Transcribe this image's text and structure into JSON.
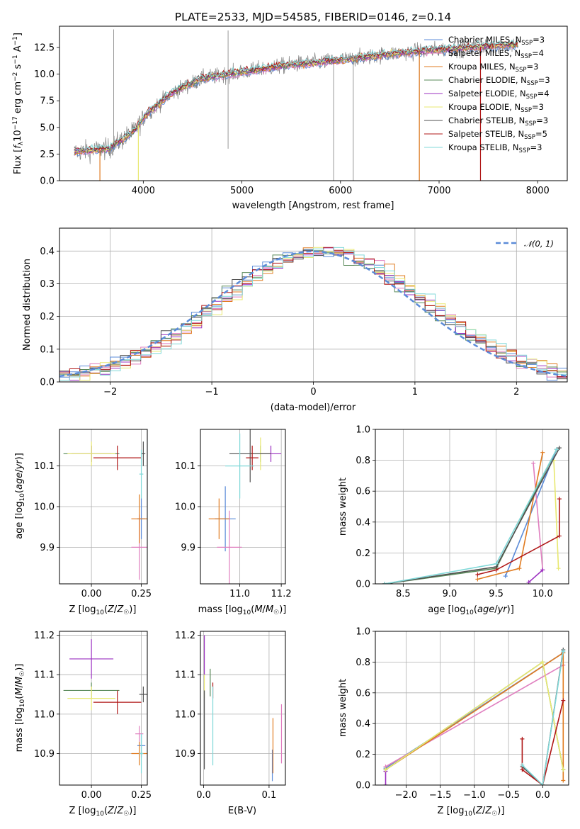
{
  "colors": {
    "chabrier_miles": "#5b8bd8",
    "salpeter_miles": "#e07fbf",
    "kroupa_miles": "#e07b20",
    "chabrier_elodie": "#5a8a5a",
    "salpeter_elodie": "#9b30c0",
    "kroupa_elodie": "#e8e870",
    "chabrier_stelib": "#505050",
    "salpeter_stelib": "#b01818",
    "kroupa_stelib": "#80d8d8",
    "gaussian": "#5b8bd8"
  },
  "chart_data": [
    {
      "id": "spectrum",
      "type": "line",
      "title": "PLATE=2533, MJD=54585, FIBERID=0146, z=0.14",
      "xlabel": "wavelength [Angstrom, rest frame]",
      "ylabel": "Flux [f_λ 10^{-17} erg cm^{-2} s^{-1} A^{-1}]",
      "xlim": [
        3150,
        8300
      ],
      "ylim": [
        0,
        14.5
      ],
      "xticks": [
        "4000",
        "5000",
        "6000",
        "7000",
        "8000"
      ],
      "yticks": [
        "0.0",
        "2.5",
        "5.0",
        "7.5",
        "10.0",
        "12.5"
      ],
      "grid": false,
      "legend_position": "top-right",
      "legend": [
        {
          "label": "Chabrier MILES, N",
          "sub": "SSP",
          "tail": "=3",
          "color": "chabrier_miles"
        },
        {
          "label": "Salpeter MILES, N",
          "sub": "SSP",
          "tail": "=4",
          "color": "salpeter_miles"
        },
        {
          "label": "Kroupa MILES, N",
          "sub": "SSP",
          "tail": "=3",
          "color": "kroupa_miles"
        },
        {
          "label": "Chabrier ELODIE, N",
          "sub": "SSP",
          "tail": "=3",
          "color": "chabrier_elodie"
        },
        {
          "label": "Salpeter ELODIE, N",
          "sub": "SSP",
          "tail": "=4",
          "color": "salpeter_elodie"
        },
        {
          "label": "Kroupa ELODIE, N",
          "sub": "SSP",
          "tail": "=3",
          "color": "kroupa_elodie"
        },
        {
          "label": "Chabrier STELIB, N",
          "sub": "SSP",
          "tail": "=3",
          "color": "chabrier_stelib"
        },
        {
          "label": "Salpeter STELIB, N",
          "sub": "SSP",
          "tail": "=5",
          "color": "salpeter_stelib"
        },
        {
          "label": "Kroupa STELIB, N",
          "sub": "SSP",
          "tail": "=3",
          "color": "kroupa_stelib"
        }
      ],
      "continuum_knots": [
        [
          3300,
          2.7
        ],
        [
          3650,
          3.0
        ],
        [
          3900,
          4.6
        ],
        [
          4050,
          6.4
        ],
        [
          4300,
          8.3
        ],
        [
          4600,
          9.6
        ],
        [
          5000,
          10.2
        ],
        [
          5500,
          10.9
        ],
        [
          6000,
          11.3
        ],
        [
          6500,
          11.9
        ],
        [
          7000,
          12.3
        ],
        [
          7500,
          12.6
        ],
        [
          7800,
          12.8
        ]
      ],
      "spikes_down": [
        [
          4860,
          3.0
        ],
        [
          5930,
          0.0
        ],
        [
          6130,
          0.0
        ],
        [
          6800,
          0.0
        ],
        [
          7420,
          0.0
        ]
      ],
      "spikes_up": [
        [
          3700,
          14.2
        ],
        [
          4860,
          14.1
        ]
      ]
    },
    {
      "id": "residuals",
      "type": "line",
      "xlabel": "(data-model)/error",
      "ylabel": "Normed distribution",
      "xlim": [
        -2.5,
        2.5
      ],
      "ylim": [
        0,
        0.47
      ],
      "xticks": [
        "−2",
        "−1",
        "0",
        "1",
        "2"
      ],
      "yticks": [
        "0.0",
        "0.1",
        "0.2",
        "0.3",
        "0.4"
      ],
      "grid": true,
      "legend_position": "top-right",
      "legend_label": "𝒩(0, 1)",
      "bin_width": 0.1
    },
    {
      "id": "age_vs_Z",
      "type": "scatter",
      "xlabel": "Z [log10(Z/Z☉)]",
      "ylabel": "age  [log10(age/yr)]",
      "xlim": [
        -0.16,
        0.28
      ],
      "ylim": [
        9.81,
        10.19
      ],
      "xticks": [
        "0.00",
        "0.25"
      ],
      "yticks": [
        "9.9",
        "10.0",
        "10.1"
      ],
      "grid": true,
      "points": [
        {
          "c": "chabrier_miles",
          "x": 0.25,
          "y": 9.97,
          "ex": 0.02,
          "ey": 0.05
        },
        {
          "c": "salpeter_miles",
          "x": 0.24,
          "y": 9.9,
          "ex": 0.04,
          "ey": 0.08
        },
        {
          "c": "kroupa_miles",
          "x": 0.24,
          "y": 9.97,
          "ex": 0.04,
          "ey": 0.06
        },
        {
          "c": "chabrier_elodie",
          "x": 0.0,
          "y": 10.13,
          "ex": 0.14,
          "ey": 0.02
        },
        {
          "c": "salpeter_elodie",
          "x": 0.0,
          "y": 10.13,
          "ex": 0.1,
          "ey": 0.02
        },
        {
          "c": "kroupa_elodie",
          "x": 0.0,
          "y": 10.13,
          "ex": 0.12,
          "ey": 0.03
        },
        {
          "c": "chabrier_stelib",
          "x": 0.26,
          "y": 10.13,
          "ex": 0.01,
          "ey": 0.03
        },
        {
          "c": "salpeter_stelib",
          "x": 0.13,
          "y": 10.12,
          "ex": 0.12,
          "ey": 0.03
        },
        {
          "c": "kroupa_stelib",
          "x": 0.25,
          "y": 10.08,
          "ex": 0.01,
          "ey": 0.06
        }
      ]
    },
    {
      "id": "age_vs_mass",
      "type": "scatter",
      "xlabel": "mass [log10(M/M☉)]",
      "ylabel": "",
      "xlim": [
        10.81,
        11.22
      ],
      "ylim": [
        9.81,
        10.19
      ],
      "xticks": [
        "11.0",
        "11.2"
      ],
      "yticks": [
        "9.9",
        "10.0",
        "10.1"
      ],
      "grid": true,
      "points": [
        {
          "c": "chabrier_miles",
          "x": 10.93,
          "y": 9.97,
          "ex": 0.05,
          "ey": 0.08
        },
        {
          "c": "salpeter_miles",
          "x": 10.95,
          "y": 9.9,
          "ex": 0.06,
          "ey": 0.09
        },
        {
          "c": "kroupa_miles",
          "x": 10.9,
          "y": 9.97,
          "ex": 0.05,
          "ey": 0.05
        },
        {
          "c": "chabrier_elodie",
          "x": 11.1,
          "y": 10.13,
          "ex": 0.05,
          "ey": 0.02
        },
        {
          "c": "salpeter_elodie",
          "x": 11.15,
          "y": 10.13,
          "ex": 0.05,
          "ey": 0.02
        },
        {
          "c": "kroupa_elodie",
          "x": 11.1,
          "y": 10.13,
          "ex": 0.05,
          "ey": 0.04
        },
        {
          "c": "chabrier_stelib",
          "x": 11.05,
          "y": 10.13,
          "ex": 0.1,
          "ey": 0.07
        },
        {
          "c": "salpeter_stelib",
          "x": 11.06,
          "y": 10.12,
          "ex": 0.03,
          "ey": 0.03
        },
        {
          "c": "kroupa_stelib",
          "x": 11.0,
          "y": 10.1,
          "ex": 0.07,
          "ey": 0.08
        }
      ]
    },
    {
      "id": "mass_vs_Z",
      "type": "scatter",
      "xlabel": "Z [log10(Z/Z☉)]",
      "ylabel": "mass [log10(M/M☉)]",
      "xlim": [
        -0.16,
        0.28
      ],
      "ylim": [
        10.82,
        11.21
      ],
      "xticks": [
        "0.00",
        "0.25"
      ],
      "yticks": [
        "10.9",
        "11.0",
        "11.1",
        "11.2"
      ],
      "grid": true,
      "points": [
        {
          "c": "chabrier_miles",
          "x": 0.25,
          "y": 10.92,
          "ex": 0.02,
          "ey": 0.03
        },
        {
          "c": "salpeter_miles",
          "x": 0.24,
          "y": 10.95,
          "ex": 0.02,
          "ey": 0.02
        },
        {
          "c": "kroupa_miles",
          "x": 0.24,
          "y": 10.9,
          "ex": 0.04,
          "ey": 0.03
        },
        {
          "c": "chabrier_elodie",
          "x": 0.0,
          "y": 11.06,
          "ex": 0.14,
          "ey": 0.02
        },
        {
          "c": "salpeter_elodie",
          "x": 0.0,
          "y": 11.14,
          "ex": 0.11,
          "ey": 0.05
        },
        {
          "c": "kroupa_elodie",
          "x": 0.0,
          "y": 11.04,
          "ex": 0.12,
          "ey": 0.03
        },
        {
          "c": "chabrier_stelib",
          "x": 0.26,
          "y": 11.05,
          "ex": 0.02,
          "ey": 0.02
        },
        {
          "c": "salpeter_stelib",
          "x": 0.13,
          "y": 11.03,
          "ex": 0.12,
          "ey": 0.03
        },
        {
          "c": "kroupa_stelib",
          "x": 0.25,
          "y": 10.9,
          "ex": 0.01,
          "ey": 0.05
        }
      ]
    },
    {
      "id": "mass_vs_ebv",
      "type": "scatter",
      "xlabel": "E(B-V)",
      "ylabel": "",
      "xlim": [
        -0.005,
        0.125
      ],
      "ylim": [
        10.82,
        11.21
      ],
      "xticks": [
        "0.0",
        "0.1"
      ],
      "yticks": [
        "10.9",
        "11.0",
        "11.1",
        "11.2"
      ],
      "grid": true,
      "points": [
        {
          "c": "chabrier_miles",
          "x": 0.105,
          "y": 10.87,
          "ex": 0.0,
          "ey": 0.04
        },
        {
          "c": "salpeter_miles",
          "x": 0.119,
          "y": 10.95,
          "ex": 0.0,
          "ey": 0.075
        },
        {
          "c": "kroupa_miles",
          "x": 0.106,
          "y": 10.92,
          "ex": 0.0,
          "ey": 0.07
        },
        {
          "c": "chabrier_elodie",
          "x": 0.01,
          "y": 11.08,
          "ex": 0.0,
          "ey": 0.035
        },
        {
          "c": "salpeter_elodie",
          "x": 0.001,
          "y": 11.15,
          "ex": 0.0,
          "ey": 0.05
        },
        {
          "c": "kroupa_elodie",
          "x": 0.001,
          "y": 11.07,
          "ex": 0.0,
          "ey": 0.03
        },
        {
          "c": "chabrier_stelib",
          "x": 0.001,
          "y": 10.96,
          "ex": 0.0,
          "ey": 0.1
        },
        {
          "c": "salpeter_stelib",
          "x": 0.014,
          "y": 11.06,
          "ex": 0.0,
          "ey": 0.02
        },
        {
          "c": "kroupa_stelib",
          "x": 0.014,
          "y": 10.97,
          "ex": 0.0,
          "ey": 0.1
        }
      ]
    },
    {
      "id": "weight_vs_age",
      "type": "line",
      "xlabel": "age  [log10(age/yr)]",
      "ylabel": "mass weight",
      "xlim": [
        8.2,
        10.28
      ],
      "ylim": [
        0,
        1.0
      ],
      "xticks": [
        "8.5",
        "9.0",
        "9.5",
        "10.0"
      ],
      "yticks": [
        "0.0",
        "0.2",
        "0.4",
        "0.6",
        "0.8",
        "1.0"
      ],
      "grid": true,
      "series": [
        {
          "c": "chabrier_miles",
          "points": [
            [
              9.6,
              0.05
            ],
            [
              10.15,
              0.87
            ]
          ]
        },
        {
          "c": "salpeter_miles",
          "points": [
            [
              9.9,
              0.78
            ],
            [
              10.0,
              0.09
            ]
          ]
        },
        {
          "c": "kroupa_miles",
          "points": [
            [
              9.3,
              0.03
            ],
            [
              9.75,
              0.1
            ],
            [
              10.0,
              0.85
            ]
          ]
        },
        {
          "c": "chabrier_elodie",
          "points": [
            [
              8.3,
              0.0
            ],
            [
              9.5,
              0.1
            ],
            [
              10.15,
              0.87
            ]
          ]
        },
        {
          "c": "salpeter_elodie",
          "points": [
            [
              9.85,
              0.01
            ],
            [
              10.0,
              0.09
            ]
          ]
        },
        {
          "c": "kroupa_elodie",
          "points": [
            [
              10.12,
              0.8
            ],
            [
              10.17,
              0.1
            ]
          ]
        },
        {
          "c": "chabrier_stelib",
          "points": [
            [
              8.3,
              0.0
            ],
            [
              9.5,
              0.11
            ],
            [
              10.18,
              0.88
            ]
          ]
        },
        {
          "c": "salpeter_stelib",
          "points": [
            [
              9.3,
              0.06
            ],
            [
              9.5,
              0.09
            ],
            [
              10.18,
              0.31
            ],
            [
              10.18,
              0.55
            ]
          ]
        },
        {
          "c": "kroupa_stelib",
          "points": [
            [
              8.3,
              0.0
            ],
            [
              9.5,
              0.13
            ],
            [
              10.15,
              0.87
            ]
          ]
        }
      ]
    },
    {
      "id": "weight_vs_Z",
      "type": "line",
      "xlabel": "Z [log10(Z/Z☉)]",
      "ylabel": "mass weight",
      "xlim": [
        -2.45,
        0.38
      ],
      "ylim": [
        0,
        1.0
      ],
      "xticks": [
        "−2.0",
        "−1.5",
        "−1.0",
        "−0.5",
        "0.0"
      ],
      "yticks": [
        "0.0",
        "0.2",
        "0.4",
        "0.6",
        "0.8",
        "1.0"
      ],
      "grid": true,
      "series": [
        {
          "c": "chabrier_miles",
          "points": [
            [
              -2.3,
              0.11
            ],
            [
              0.3,
              0.86
            ]
          ]
        },
        {
          "c": "salpeter_miles",
          "points": [
            [
              -2.3,
              0.12
            ],
            [
              0.3,
              0.78
            ]
          ]
        },
        {
          "c": "kroupa_miles",
          "points": [
            [
              -2.3,
              0.1
            ],
            [
              0.3,
              0.86
            ],
            [
              0.3,
              0.03
            ]
          ]
        },
        {
          "c": "chabrier_elodie",
          "points": [
            [
              -2.3,
              0.1
            ],
            [
              0.0,
              0.8
            ],
            [
              0.3,
              0.1
            ]
          ]
        },
        {
          "c": "salpeter_elodie",
          "points": [
            [
              -2.3,
              0.0
            ],
            [
              -2.3,
              0.09
            ]
          ]
        },
        {
          "c": "kroupa_elodie",
          "points": [
            [
              -2.3,
              0.1
            ],
            [
              0.0,
              0.8
            ],
            [
              0.3,
              0.1
            ]
          ]
        },
        {
          "c": "chabrier_stelib",
          "points": [
            [
              -0.3,
              0.12
            ],
            [
              0.0,
              0.0
            ],
            [
              0.3,
              0.88
            ]
          ]
        },
        {
          "c": "salpeter_stelib",
          "points": [
            [
              -0.3,
              0.3
            ],
            [
              -0.3,
              0.1
            ],
            [
              0.0,
              0.0
            ],
            [
              0.3,
              0.55
            ]
          ]
        },
        {
          "c": "kroupa_stelib",
          "points": [
            [
              -0.3,
              0.13
            ],
            [
              0.0,
              0.0
            ],
            [
              0.3,
              0.87
            ]
          ]
        }
      ]
    }
  ]
}
